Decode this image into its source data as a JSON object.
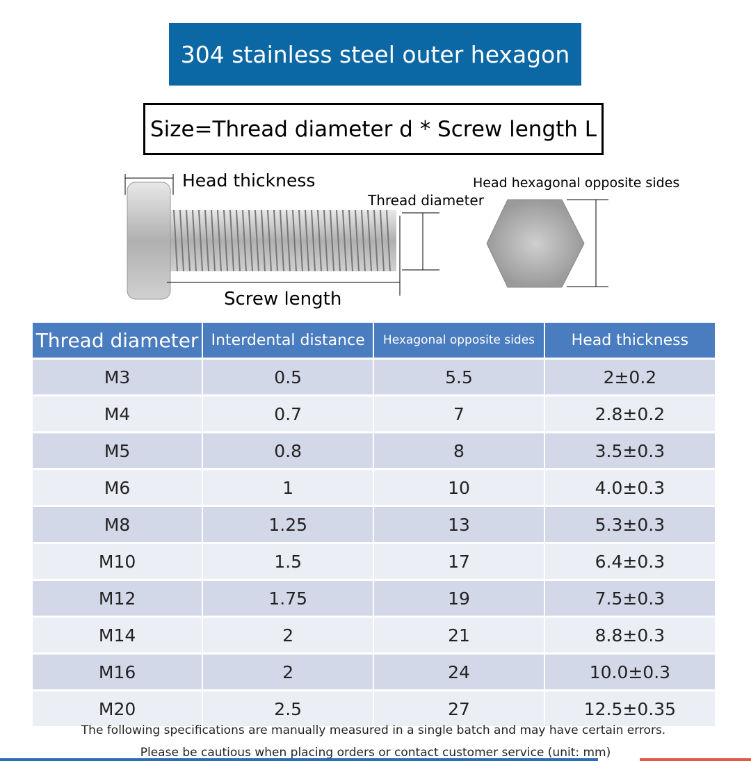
{
  "header": {
    "title": "304 stainless steel outer hexagon",
    "subtitle": "Size=Thread diameter d * Screw length L"
  },
  "diagram": {
    "head_thickness": "Head thickness",
    "thread_diameter": "Thread diameter",
    "hex_sides": "Head hexagonal opposite sides",
    "screw_length": "Screw length"
  },
  "table": {
    "columns": [
      "Thread diameter",
      "Interdental distance",
      "Hexagonal opposite sides",
      "Head thickness"
    ],
    "rows": [
      [
        "M3",
        "0.5",
        "5.5",
        "2±0.2"
      ],
      [
        "M4",
        "0.7",
        "7",
        "2.8±0.2"
      ],
      [
        "M5",
        "0.8",
        "8",
        "3.5±0.3"
      ],
      [
        "M6",
        "1",
        "10",
        "4.0±0.3"
      ],
      [
        "M8",
        "1.25",
        "13",
        "5.3±0.3"
      ],
      [
        "M10",
        "1.5",
        "17",
        "6.4±0.3"
      ],
      [
        "M12",
        "1.75",
        "19",
        "7.5±0.3"
      ],
      [
        "M14",
        "2",
        "21",
        "8.8±0.3"
      ],
      [
        "M16",
        "2",
        "24",
        "10.0±0.3"
      ],
      [
        "M20",
        "2.5",
        "27",
        "12.5±0.35"
      ]
    ]
  },
  "footer": {
    "notes": [
      "The following specifications are manually measured in a single batch and may have certain errors.",
      "Please be cautious when placing orders or contact customer service (unit: mm)"
    ]
  }
}
